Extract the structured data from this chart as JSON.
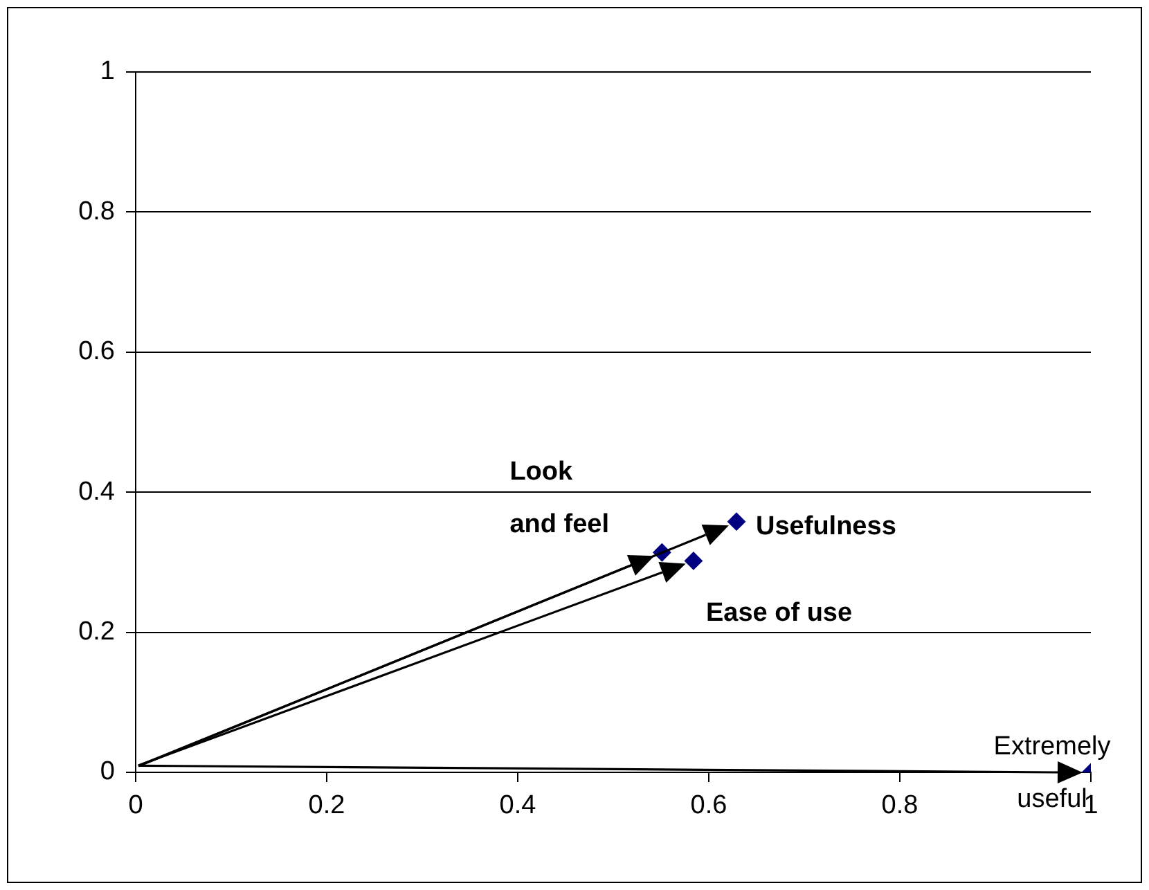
{
  "chart_data": {
    "type": "scatter",
    "x": [
      0.629,
      0.551,
      0.584,
      1
    ],
    "series": [
      {
        "color": "#000080",
        "values": [
          0.358,
          0.314,
          0.302,
          0
        ]
      }
    ],
    "marker": "diamond",
    "grid": "y",
    "xlim": [
      0,
      1
    ],
    "ylim": [
      0,
      1
    ],
    "xticks": [
      0,
      0.2,
      0.4,
      0.6,
      0.8,
      1
    ],
    "yticks": [
      0,
      0.2,
      0.4,
      0.6,
      0.8,
      1
    ],
    "annotations": [
      {
        "text": "Usefulness",
        "x": 0.629,
        "y": 0.358
      },
      {
        "text": "Look\nand feel",
        "x": 0.551,
        "y": 0.314
      },
      {
        "text": "Ease of use",
        "x": 0.584,
        "y": 0.302
      },
      {
        "text": "Extremely\nuseful",
        "x": 1,
        "y": 0
      }
    ]
  }
}
